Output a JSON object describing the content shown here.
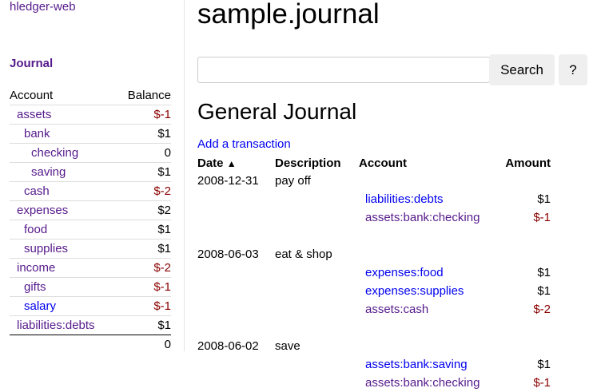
{
  "sidebar": {
    "brand": "hledger-web",
    "journal_link": "Journal",
    "headers": {
      "account": "Account",
      "balance": "Balance"
    },
    "accounts": [
      {
        "name": "assets",
        "balance": "$-1",
        "depth": 0,
        "negative": true,
        "visited": true
      },
      {
        "name": "bank",
        "balance": "$1",
        "depth": 1,
        "negative": false,
        "visited": true
      },
      {
        "name": "checking",
        "balance": "0",
        "depth": 2,
        "negative": false,
        "visited": true
      },
      {
        "name": "saving",
        "balance": "$1",
        "depth": 2,
        "negative": false,
        "visited": true
      },
      {
        "name": "cash",
        "balance": "$-2",
        "depth": 1,
        "negative": true,
        "visited": true
      },
      {
        "name": "expenses",
        "balance": "$2",
        "depth": 0,
        "negative": false,
        "visited": true
      },
      {
        "name": "food",
        "balance": "$1",
        "depth": 1,
        "negative": false,
        "visited": true
      },
      {
        "name": "supplies",
        "balance": "$1",
        "depth": 1,
        "negative": false,
        "visited": true
      },
      {
        "name": "income",
        "balance": "$-2",
        "depth": 0,
        "negative": true,
        "visited": true
      },
      {
        "name": "gifts",
        "balance": "$-1",
        "depth": 1,
        "negative": true,
        "visited": true
      },
      {
        "name": "salary",
        "balance": "$-1",
        "depth": 1,
        "negative": true,
        "visited": false
      },
      {
        "name": "liabilities:debts",
        "balance": "$1",
        "depth": 0,
        "negative": false,
        "visited": true
      }
    ],
    "total": "0"
  },
  "main": {
    "title": "sample.journal",
    "search": {
      "value": "",
      "placeholder": "",
      "button": "Search",
      "help": "?"
    },
    "heading": "General Journal",
    "add_transaction": "Add a transaction",
    "columns": {
      "date": "Date",
      "sort_icon": "chevron-up-icon",
      "description": "Description",
      "account": "Account",
      "amount": "Amount"
    },
    "transactions": [
      {
        "date": "2008-12-31",
        "description": "pay off",
        "postings": [
          {
            "account": "liabilities:debts",
            "amount": "$1",
            "negative": false,
            "visited": false
          },
          {
            "account": "assets:bank:checking",
            "amount": "$-1",
            "negative": true,
            "visited": true
          }
        ]
      },
      {
        "date": "2008-06-03",
        "description": "eat & shop",
        "postings": [
          {
            "account": "expenses:food",
            "amount": "$1",
            "negative": false,
            "visited": false
          },
          {
            "account": "expenses:supplies",
            "amount": "$1",
            "negative": false,
            "visited": false
          },
          {
            "account": "assets:cash",
            "amount": "$-2",
            "negative": true,
            "visited": true
          }
        ]
      },
      {
        "date": "2008-06-02",
        "description": "save",
        "postings": [
          {
            "account": "assets:bank:saving",
            "amount": "$1",
            "negative": false,
            "visited": false
          },
          {
            "account": "assets:bank:checking",
            "amount": "$-1",
            "negative": true,
            "visited": true
          }
        ]
      }
    ]
  },
  "colors": {
    "link": "#0000ee",
    "visited": "#551a8b",
    "negative": "#8b0000"
  }
}
